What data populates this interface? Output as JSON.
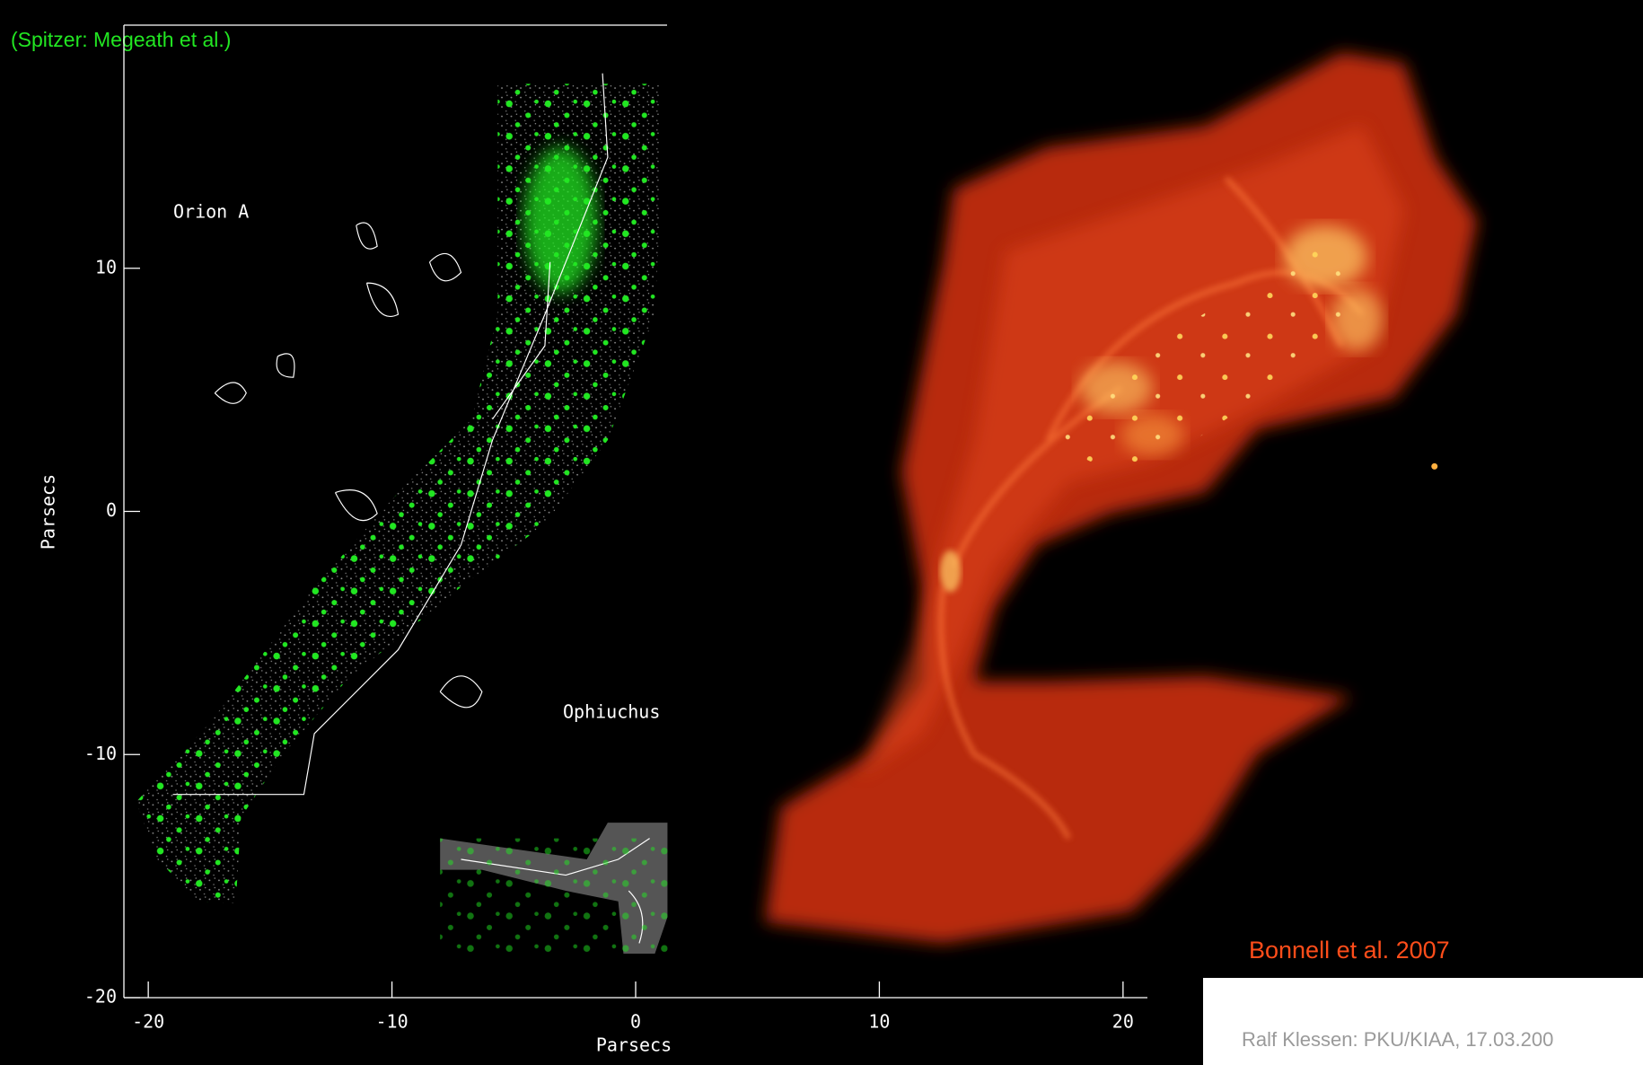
{
  "chart_data": {
    "type": "scatter",
    "title": "(Spitzer: Megeath et al.)",
    "x_label": "Parsecs",
    "y_label": "Parsecs",
    "annotations": [
      "Orion A",
      "Ophiuchus"
    ],
    "xlim": [
      -21,
      21
    ],
    "ylim": [
      -20,
      20
    ],
    "xticks": [
      -20,
      -10,
      0,
      10,
      20
    ],
    "yticks": [
      -20,
      -10,
      0,
      10
    ],
    "color": "#22e622"
  },
  "simulation": {
    "caption": "Bonnell et al. 2007"
  },
  "footer": "Ralf Klessen:  PKU/KIAA, 17.03.200"
}
